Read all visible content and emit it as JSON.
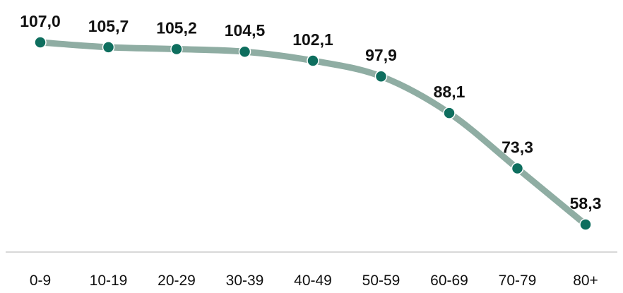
{
  "chart_data": {
    "type": "line",
    "categories": [
      "0-9",
      "10-19",
      "20-29",
      "30-39",
      "40-49",
      "50-59",
      "60-69",
      "70-79",
      "80+"
    ],
    "values": [
      107.0,
      105.7,
      105.2,
      104.5,
      102.1,
      97.9,
      88.1,
      73.3,
      58.3
    ],
    "data_labels": [
      "107,0",
      "105,7",
      "105,2",
      "104,5",
      "102,1",
      "97,9",
      "88,1",
      "73,3",
      "58,3"
    ],
    "title": "",
    "xlabel": "",
    "ylabel": "",
    "ylim": [
      50,
      110
    ],
    "grid": false,
    "legend": "none",
    "colors": {
      "line": "#8fada3",
      "marker": "#0e6e5e",
      "marker_stroke": "#ffffff",
      "axis": "#cccccc",
      "text": "#111111"
    }
  }
}
